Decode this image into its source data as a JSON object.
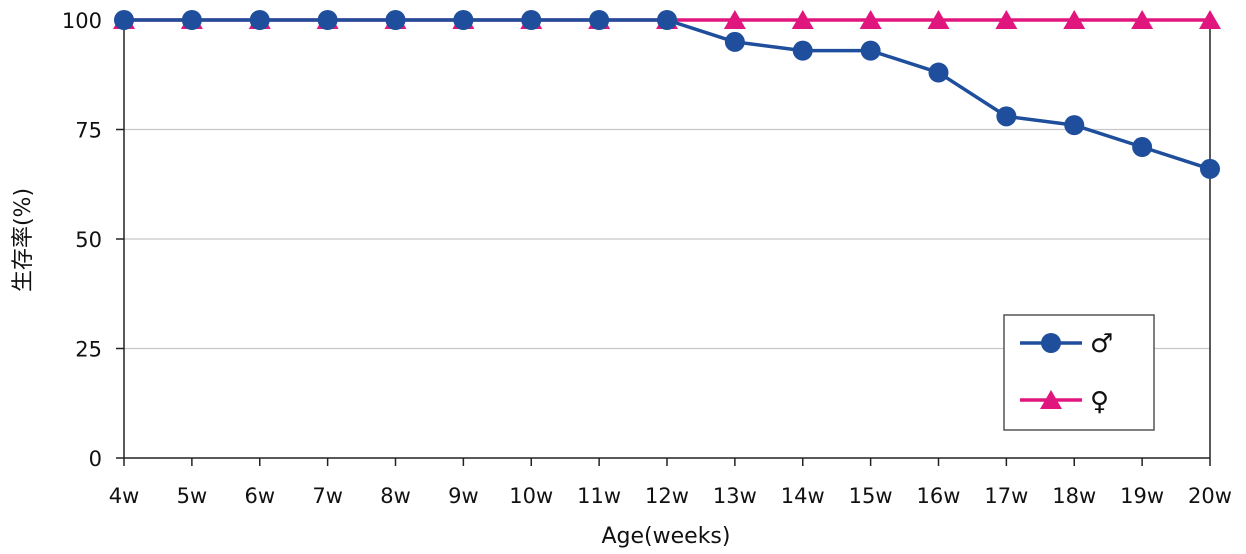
{
  "chart_data": {
    "type": "line",
    "title": "",
    "xlabel": "Age(weeks)",
    "ylabel": "生存率(%)",
    "categories": [
      "4w",
      "5w",
      "6w",
      "7w",
      "8w",
      "9w",
      "10w",
      "11w",
      "12w",
      "13w",
      "14w",
      "15w",
      "16w",
      "17w",
      "18w",
      "19w",
      "20w"
    ],
    "ylim": [
      0,
      100
    ],
    "yticks": [
      0,
      25,
      50,
      75,
      100
    ],
    "grid": true,
    "legend_position": "bottom-right",
    "series": [
      {
        "name": "♂",
        "marker": "circle",
        "color": "#1f4e9c",
        "values": [
          100,
          100,
          100,
          100,
          100,
          100,
          100,
          100,
          100,
          95,
          93,
          93,
          88,
          78,
          76,
          71,
          66
        ]
      },
      {
        "name": "♀",
        "marker": "triangle",
        "color": "#e0157d",
        "values": [
          100,
          100,
          100,
          100,
          100,
          100,
          100,
          100,
          100,
          100,
          100,
          100,
          100,
          100,
          100,
          100,
          100
        ]
      }
    ]
  }
}
